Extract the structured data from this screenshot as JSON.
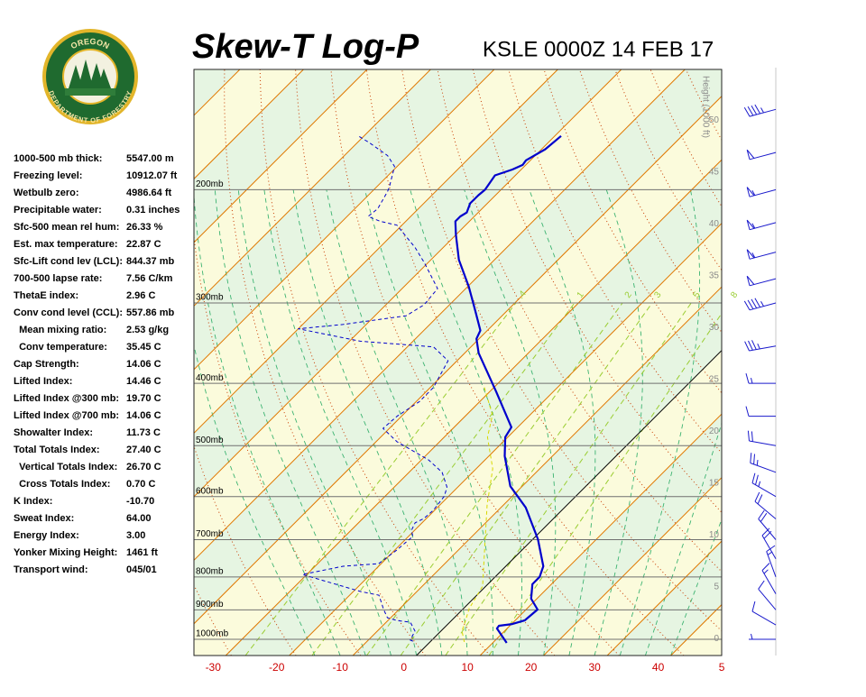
{
  "logo": {
    "top": "OREGON",
    "bottom": "DEPARTMENT OF FORESTRY"
  },
  "indices": [
    {
      "label": "1000-500 mb thick:",
      "value": "5547.00 m"
    },
    {
      "label": "Freezing level:",
      "value": "10912.07 ft"
    },
    {
      "label": "Wetbulb zero:",
      "value": "4986.64 ft"
    },
    {
      "label": "Precipitable water:",
      "value": "0.31 inches"
    },
    {
      "label": "Sfc-500 mean rel hum:",
      "value": "26.33 %"
    },
    {
      "label": "Est. max temperature:",
      "value": "22.87 C"
    },
    {
      "label": "Sfc-Lift cond lev (LCL):",
      "value": "844.37 mb"
    },
    {
      "label": "700-500 lapse rate:",
      "value": "7.56 C/km"
    },
    {
      "label": "ThetaE index:",
      "value": "2.96 C"
    },
    {
      "label": "Conv cond level (CCL):",
      "value": "557.86 mb"
    },
    {
      "label": "  Mean mixing ratio:",
      "value": "2.53 g/kg"
    },
    {
      "label": "  Conv temperature:",
      "value": "35.45 C"
    },
    {
      "label": "Cap Strength:",
      "value": "14.06 C"
    },
    {
      "label": "Lifted Index:",
      "value": "14.46 C"
    },
    {
      "label": "Lifted Index @300 mb:",
      "value": "19.70 C"
    },
    {
      "label": "Lifted Index @700 mb:",
      "value": "14.06 C"
    },
    {
      "label": "Showalter Index:",
      "value": "11.73 C"
    },
    {
      "label": "Total Totals Index:",
      "value": "27.40 C"
    },
    {
      "label": "  Vertical Totals Index:",
      "value": "26.70 C"
    },
    {
      "label": "  Cross Totals Index:",
      "value": "0.70 C"
    },
    {
      "label": "K Index:",
      "value": "-10.70"
    },
    {
      "label": "Sweat Index:",
      "value": "64.00"
    },
    {
      "label": "Energy Index:",
      "value": "3.00"
    },
    {
      "label": "Yonker Mixing Height:",
      "value": "1461 ft"
    },
    {
      "label": "Transport wind:",
      "value": "045/01"
    }
  ],
  "chart_data": {
    "type": "skew-t",
    "title": "Skew-T Log-P",
    "subtitle": "KSLE 0000Z 14 FEB 17",
    "xlim": [
      -35,
      48
    ],
    "xticks": [
      -30,
      -20,
      -10,
      0,
      10,
      20,
      30,
      40,
      {
        "value": 50,
        "label": "5"
      }
    ],
    "ylim": [
      1060,
      130
    ],
    "log_y": true,
    "yticks": [
      {
        "value": 200,
        "label": "200mb"
      },
      {
        "value": 300,
        "label": "300mb"
      },
      {
        "value": 400,
        "label": "400mb"
      },
      {
        "value": 500,
        "label": "500mb"
      },
      {
        "value": 600,
        "label": "600mb"
      },
      {
        "value": 700,
        "label": "700mb"
      },
      {
        "value": 800,
        "label": "800mb"
      },
      {
        "value": 900,
        "label": "900mb"
      },
      {
        "value": 1000,
        "label": "1000mb"
      }
    ],
    "y2_label": "Height (1000 ft)",
    "y2lim": [
      -1.6,
      54.9
    ],
    "y2ticks": [
      0,
      5,
      10,
      15,
      20,
      25,
      30,
      35,
      40,
      45,
      50
    ],
    "mixing_ratio": [
      {
        "value": 0.4,
        "label": ".4"
      },
      1,
      2,
      3,
      5,
      8
    ],
    "series": [
      {
        "color": "#0000cc",
        "style": "solid",
        "x": [
          12.2,
          8.4,
          8.3,
          10.1,
          11.5,
          11.8,
          9.1,
          7.0,
          7.0,
          5.9,
          0.8,
          -6.1,
          -11.9,
          -17.5,
          -20.4,
          -21.0,
          -29.0,
          -37.8,
          -40.4,
          -41.1,
          -44.9,
          -49.8,
          -55.6,
          -60.0,
          -62.2,
          -62.2,
          -61.8,
          -62.7,
          -62.7,
          -62.5,
          -63.2,
          -61.4,
          -60.5,
          -60.7,
          -59.4,
          -59.0
        ],
        "y": [
          1013,
          962,
          953,
          947,
          935,
          899,
          865,
          821,
          800,
          770,
          699,
          624,
          578,
          519,
          485,
          468,
          412,
          359,
          341,
          331,
          309,
          283,
          257,
          235,
          224,
          220,
          217,
          210,
          204,
          200,
          190,
          186,
          183,
          180,
          173,
          165
        ]
      },
      {
        "color": "#0000cc",
        "style": "dashed",
        "x": [
          -2.8,
          -3.4,
          -4.1,
          -6.2,
          -8.6,
          -10.5,
          -12.4,
          -15.4,
          -18.8,
          -30.7,
          -25.6,
          -20.4,
          -19.7,
          -19.3,
          -20.5,
          -21.1,
          -20.4,
          -20.2,
          -20.7,
          -21.7,
          -24.8,
          -28.9,
          -36.7,
          -41.0,
          -40.7,
          -39.5,
          -39.5,
          -41.4,
          -45.9,
          -58.3,
          -70.0,
          -63.7,
          -55.1,
          -54.0,
          -54.4,
          -60.5,
          -64.4,
          -70.8,
          -74.0,
          -76.7,
          -76.4,
          -77.6,
          -78.0,
          -80.4,
          -83.2,
          -88.1,
          -90.9
        ],
        "y": [
          1007,
          1003,
          971,
          941,
          935,
          926,
          899,
          854,
          843,
          793,
          770,
          763,
          727,
          692,
          677,
          659,
          649,
          630,
          599,
          580,
          550,
          526,
          493,
          470,
          450,
          427,
          406,
          369,
          351,
          344,
          329,
          324,
          314,
          302,
          285,
          260,
          246,
          227,
          224,
          220,
          214,
          201,
          198,
          184,
          177,
          169,
          165
        ]
      },
      {
        "color": "#d8d800",
        "style": "dashed",
        "x": [
          5.4,
          3.3,
          2.2,
          0.9,
          -0.5,
          -7.2,
          -12.6,
          -17.4,
          -23.2,
          -25.9,
          -31.5
        ],
        "y": [
          1010,
          971,
          935,
          896,
          827,
          704,
          618,
          543,
          485,
          448,
          406
        ]
      }
    ],
    "winds": {
      "p": [
        1000,
        950,
        900,
        850,
        800,
        750,
        700,
        650,
        600,
        550,
        500,
        450,
        400,
        350,
        300,
        275,
        250,
        225,
        200,
        175,
        150
      ],
      "direction": [
        270,
        300,
        320,
        330,
        340,
        330,
        320,
        310,
        300,
        290,
        280,
        270,
        270,
        260,
        255,
        255,
        255,
        255,
        255,
        255,
        255
      ],
      "speed": [
        5,
        10,
        10,
        15,
        15,
        20,
        20,
        20,
        25,
        25,
        20,
        10,
        15,
        35,
        45,
        50,
        55,
        55,
        55,
        50,
        45
      ]
    }
  }
}
